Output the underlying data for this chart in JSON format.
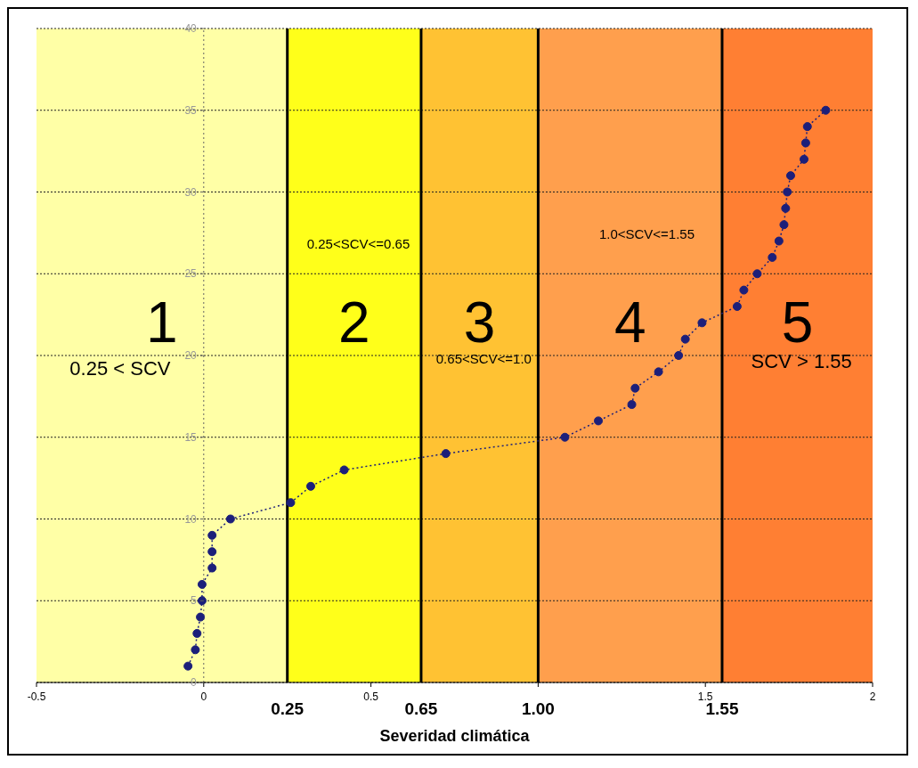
{
  "chart_data": {
    "type": "line",
    "xlabel": "Severidad climática",
    "x": [
      -0.047,
      -0.025,
      -0.02,
      -0.01,
      -0.005,
      -0.005,
      0.025,
      0.025,
      0.025,
      0.08,
      0.26,
      0.32,
      0.42,
      0.724,
      1.08,
      1.18,
      1.28,
      1.29,
      1.36,
      1.42,
      1.44,
      1.49,
      1.595,
      1.615,
      1.655,
      1.7,
      1.72,
      1.735,
      1.74,
      1.745,
      1.755,
      1.795,
      1.8,
      1.805,
      1.86
    ],
    "series": [
      {
        "color": "#1c1f7a",
        "values": [
          1,
          2,
          3,
          4,
          5,
          6,
          7,
          8,
          9,
          10,
          11,
          12,
          13,
          14,
          15,
          16,
          17,
          18,
          19,
          20,
          21,
          22,
          23,
          24,
          25,
          26,
          27,
          28,
          29,
          30,
          31,
          32,
          33,
          34,
          35
        ]
      }
    ],
    "xlim": [
      -0.5,
      2
    ],
    "ylim": [
      0,
      40
    ],
    "xticks": [
      -0.5,
      0,
      0.5,
      {
        "value": 1,
        "label": null
      },
      1.5,
      2
    ],
    "yticks": [
      0,
      5,
      10,
      15,
      20,
      25,
      30,
      35,
      40
    ],
    "grid": "y",
    "legend": false,
    "marker": "circle",
    "line_style": "dotted",
    "bands": [
      {
        "axis": "x",
        "from": -0.5,
        "to": 0.25,
        "label": "1",
        "color": "#ffffa6"
      },
      {
        "axis": "x",
        "from": 0.25,
        "to": 0.65,
        "label": "2",
        "color": "#ffff1a"
      },
      {
        "axis": "x",
        "from": 0.65,
        "to": 1.0,
        "label": "3",
        "color": "#ffc233"
      },
      {
        "axis": "x",
        "from": 1.0,
        "to": 1.55,
        "label": "4",
        "color": "#ff9f4d"
      },
      {
        "axis": "x",
        "from": 1.55,
        "to": 2,
        "label": "5",
        "color": "#ff7f33"
      }
    ],
    "ref_lines": [
      {
        "axis": "x",
        "value": 0,
        "color": "#666666",
        "line_style": "dotted"
      },
      {
        "axis": "x",
        "value": 0.25,
        "label": "0.25",
        "color": "#000000"
      },
      {
        "axis": "x",
        "value": 0.65,
        "label": "0.65",
        "color": "#000000"
      },
      {
        "axis": "x",
        "value": 1.0,
        "label": "1.00",
        "color": "#000000"
      },
      {
        "axis": "x",
        "value": 1.55,
        "label": "1.55",
        "color": "#000000"
      }
    ],
    "annotations": [
      "0.25 < SCV",
      "0.25<SCV<=0.65",
      "0.65<SCV<=1.0",
      "1.0<SCV<=1.55",
      "SCV > 1.55"
    ]
  }
}
